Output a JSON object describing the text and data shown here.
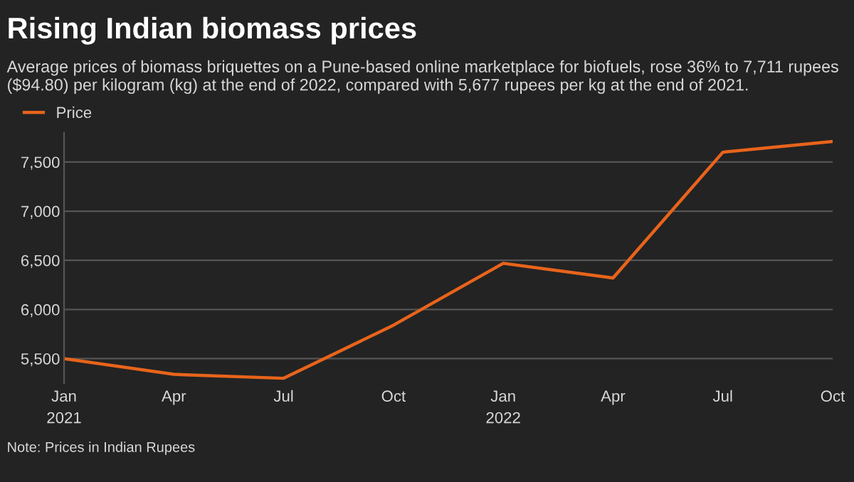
{
  "chart_data": {
    "type": "line",
    "title": "Rising Indian biomass prices",
    "subtitle": "Average prices of biomass briquettes on a Pune-based online marketplace for biofuels, rose 36% to 7,711 rupees ($94.80) per kilogram (kg) at the end of 2022, compared with 5,677 rupees per kg at the end of 2021.",
    "categories": [
      "Jan\n2021",
      "Apr",
      "Jul",
      "Oct",
      "Jan\n2022",
      "Apr",
      "Jul",
      "Oct"
    ],
    "series": [
      {
        "name": "Price",
        "color": "#e8641b",
        "values": [
          5500,
          5340,
          5300,
          5840,
          6470,
          6320,
          7600,
          7710
        ]
      }
    ],
    "ylim": [
      5250,
      7800
    ],
    "yticks": [
      {
        "value": 5500,
        "label": "5,500"
      },
      {
        "value": 6000,
        "label": "6,000"
      },
      {
        "value": 6500,
        "label": "6,500"
      },
      {
        "value": 7000,
        "label": "7,000"
      },
      {
        "value": 7500,
        "label": "7,500"
      }
    ],
    "grid": "y",
    "legend": "top left",
    "marker": "none",
    "annotations": [
      "Note: Prices in Indian Rupees"
    ]
  }
}
